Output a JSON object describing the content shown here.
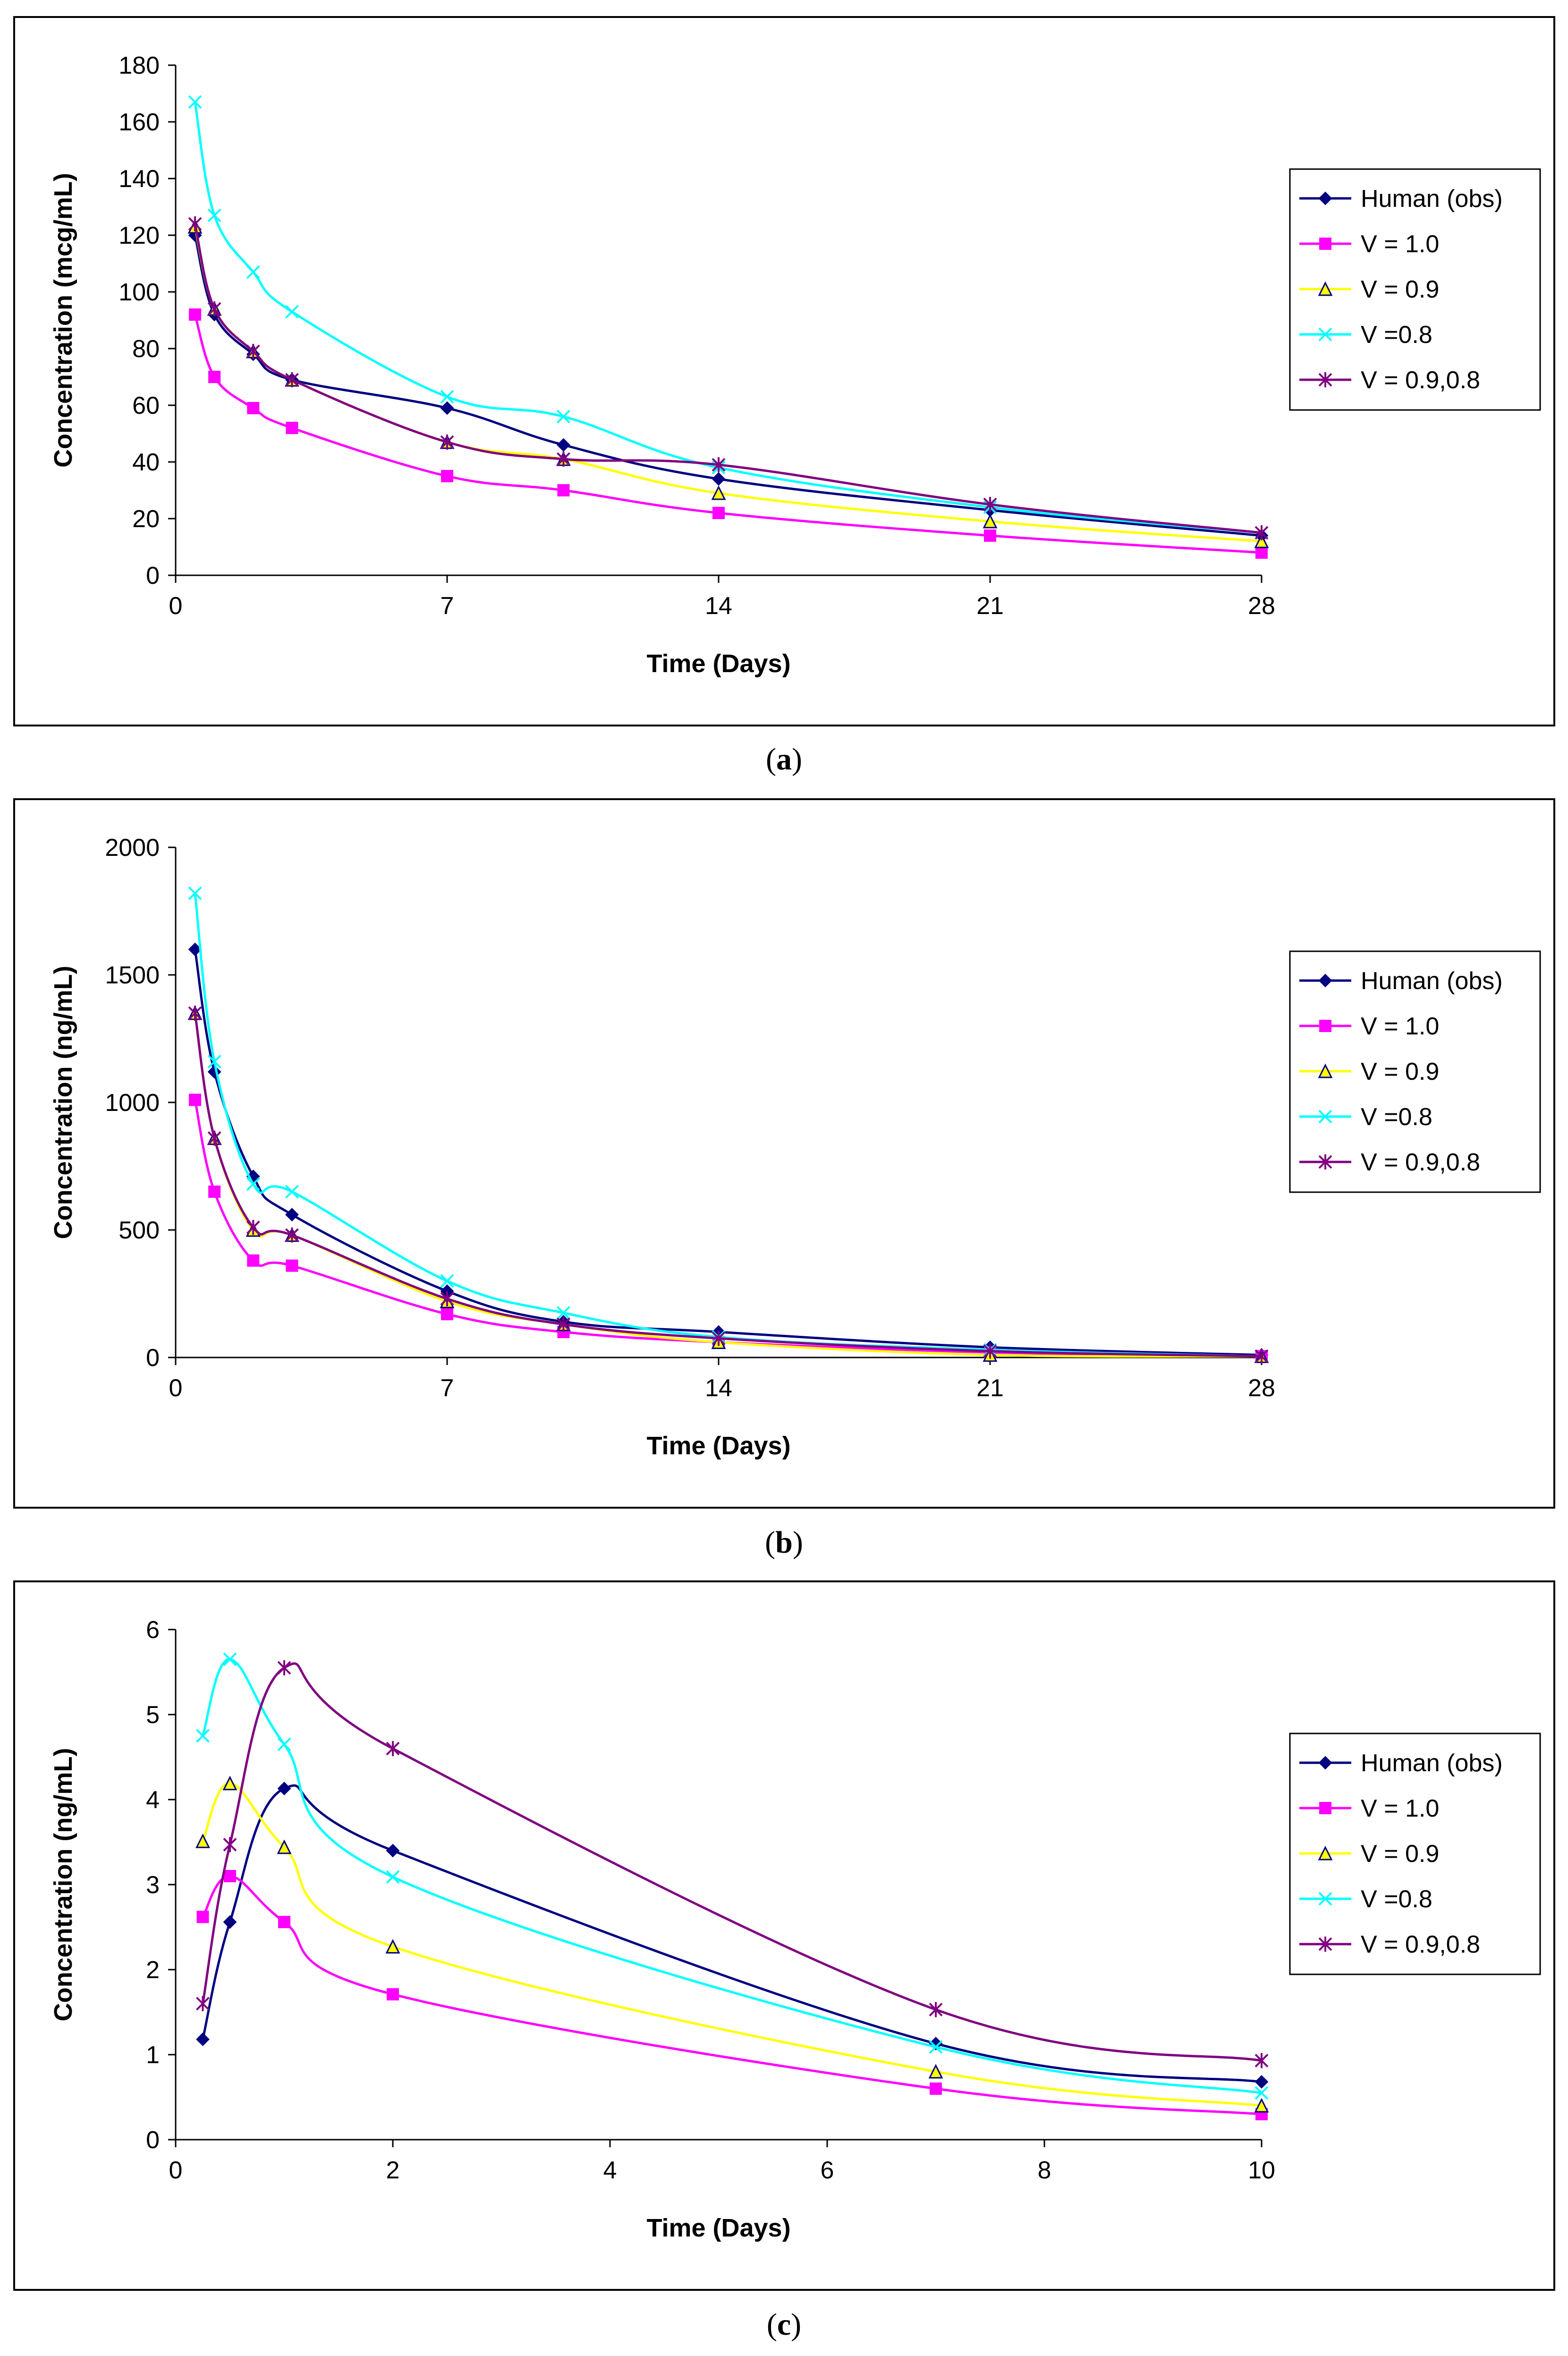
{
  "charts": [
    {
      "caption": "a",
      "chart_data": {
        "type": "line",
        "title": "",
        "xlabel": "Time (Days)",
        "ylabel": "Concentration (mcg/mL)",
        "xlim": [
          0,
          28
        ],
        "ylim": [
          0,
          180
        ],
        "xticks": [
          0,
          7,
          14,
          21,
          28
        ],
        "yticks": [
          0,
          20,
          40,
          60,
          80,
          100,
          120,
          140,
          160,
          180
        ],
        "legend_position": "right",
        "series": [
          {
            "name": "Human (obs)",
            "color": "#000080",
            "marker": "diamond",
            "x": [
              0.5,
              1,
              2,
              3,
              7,
              10,
              14,
              21,
              28
            ],
            "y": [
              120,
              92,
              78,
              69,
              59,
              46,
              34,
              23,
              14
            ]
          },
          {
            "name": "V = 1.0",
            "color": "#ff00ff",
            "marker": "square",
            "x": [
              0.5,
              1,
              2,
              3,
              7,
              10,
              14,
              21,
              28
            ],
            "y": [
              92,
              70,
              59,
              52,
              35,
              30,
              22,
              14,
              8
            ]
          },
          {
            "name": "V = 0.9",
            "color": "#ffff00",
            "marker": "triangle",
            "x": [
              0.5,
              1,
              2,
              3,
              7,
              10,
              14,
              21,
              28
            ],
            "y": [
              123,
              94,
              79,
              69,
              47,
              41,
              29,
              19,
              12
            ]
          },
          {
            "name": "V =0.8",
            "color": "#00ffff",
            "marker": "x",
            "x": [
              0.5,
              1,
              2,
              3,
              7,
              10,
              14,
              21,
              28
            ],
            "y": [
              167,
              127,
              107,
              93,
              63,
              56,
              38,
              24,
              15
            ]
          },
          {
            "name": "V = 0.9,0.8",
            "color": "#800080",
            "marker": "star",
            "x": [
              0.5,
              1,
              2,
              3,
              7,
              10,
              14,
              21,
              28
            ],
            "y": [
              124,
              94,
              79,
              69,
              47,
              41,
              39,
              25,
              15
            ]
          }
        ]
      }
    },
    {
      "caption": "b",
      "chart_data": {
        "type": "line",
        "title": "",
        "xlabel": "Time (Days)",
        "ylabel": "Concentration (ng/mL)",
        "xlim": [
          0,
          28
        ],
        "ylim": [
          0,
          2000
        ],
        "xticks": [
          0,
          7,
          14,
          21,
          28
        ],
        "yticks": [
          0,
          500,
          1000,
          1500,
          2000
        ],
        "legend_position": "right",
        "series": [
          {
            "name": "Human (obs)",
            "color": "#000080",
            "marker": "diamond",
            "x": [
              0.5,
              1,
              2,
              3,
              7,
              10,
              14,
              21,
              28
            ],
            "y": [
              1600,
              1120,
              710,
              560,
              260,
              140,
              100,
              40,
              10
            ]
          },
          {
            "name": "V = 1.0",
            "color": "#ff00ff",
            "marker": "square",
            "x": [
              0.5,
              1,
              2,
              3,
              7,
              10,
              14,
              21,
              28
            ],
            "y": [
              1010,
              650,
              380,
              360,
              170,
              100,
              60,
              20,
              5
            ]
          },
          {
            "name": "V = 0.9",
            "color": "#ffff00",
            "marker": "triangle",
            "x": [
              0.5,
              1,
              2,
              3,
              7,
              10,
              14,
              21,
              28
            ],
            "y": [
              1350,
              860,
              500,
              480,
              220,
              130,
              60,
              10,
              5
            ]
          },
          {
            "name": "V =0.8",
            "color": "#00ffff",
            "marker": "x",
            "x": [
              0.5,
              1,
              2,
              3,
              7,
              10,
              14,
              21,
              28
            ],
            "y": [
              1820,
              1160,
              680,
              650,
              300,
              175,
              80,
              30,
              5
            ]
          },
          {
            "name": "V = 0.9,0.8",
            "color": "#800080",
            "marker": "star",
            "x": [
              0.5,
              1,
              2,
              3,
              7,
              10,
              14,
              21,
              28
            ],
            "y": [
              1350,
              860,
              510,
              480,
              230,
              130,
              75,
              25,
              5
            ]
          }
        ]
      }
    },
    {
      "caption": "c",
      "chart_data": {
        "type": "line",
        "title": "",
        "xlabel": "Time (Days)",
        "ylabel": "Concentration (ng/mL)",
        "xlim": [
          0,
          10
        ],
        "ylim": [
          0,
          6
        ],
        "xticks": [
          0,
          2,
          4,
          6,
          8,
          10
        ],
        "yticks": [
          0,
          1,
          2,
          3,
          4,
          5,
          6
        ],
        "legend_position": "right",
        "series": [
          {
            "name": "Human (obs)",
            "color": "#000080",
            "marker": "diamond",
            "x": [
              0.25,
              0.5,
              1,
              2,
              7,
              10
            ],
            "y": [
              1.18,
              2.56,
              4.13,
              3.4,
              1.13,
              0.68
            ]
          },
          {
            "name": "V = 1.0",
            "color": "#ff00ff",
            "marker": "square",
            "x": [
              0.25,
              0.5,
              1,
              2,
              7,
              10
            ],
            "y": [
              2.62,
              3.1,
              2.56,
              1.71,
              0.6,
              0.3
            ]
          },
          {
            "name": "V = 0.9",
            "color": "#ffff00",
            "marker": "triangle",
            "x": [
              0.25,
              0.5,
              1,
              2,
              7,
              10
            ],
            "y": [
              3.51,
              4.19,
              3.44,
              2.27,
              0.8,
              0.4
            ]
          },
          {
            "name": "V =0.8",
            "color": "#00ffff",
            "marker": "x",
            "x": [
              0.25,
              0.5,
              1,
              2,
              7,
              10
            ],
            "y": [
              4.75,
              5.65,
              4.65,
              3.09,
              1.09,
              0.55
            ]
          },
          {
            "name": "V = 0.9,0.8",
            "color": "#800080",
            "marker": "star",
            "x": [
              0.25,
              0.5,
              1,
              2,
              7,
              10
            ],
            "y": [
              1.6,
              3.47,
              5.55,
              4.6,
              1.53,
              0.93
            ]
          }
        ]
      }
    }
  ]
}
